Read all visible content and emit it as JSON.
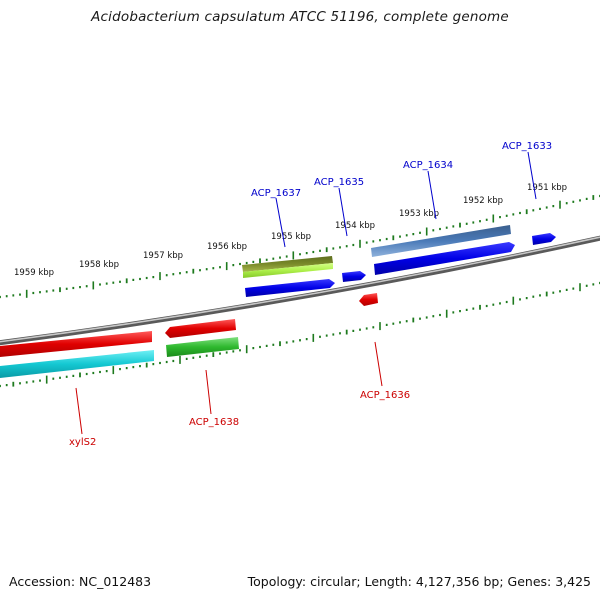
{
  "map": {
    "title": "Acidobacterium capsulatum ATCC 51196, complete genome",
    "accession": "Accession: NC_012483",
    "summary": "Topology: circular; Length: 4,127,356 bp; Genes: 3,425"
  },
  "ticks": [
    {
      "label": "1951 kbp"
    },
    {
      "label": "1952 kbp"
    },
    {
      "label": "1953 kbp"
    },
    {
      "label": "1954 kbp"
    },
    {
      "label": "1955 kbp"
    },
    {
      "label": "1956 kbp"
    },
    {
      "label": "1957 kbp"
    },
    {
      "label": "1958 kbp"
    },
    {
      "label": "1959 kbp"
    }
  ],
  "genes": {
    "acp1633": {
      "name": "ACP_1633",
      "strand": "forward",
      "color": "#0000cc"
    },
    "acp1634": {
      "name": "ACP_1634",
      "strand": "forward",
      "color": "#0000cc"
    },
    "acp1635": {
      "name": "ACP_1635",
      "strand": "forward",
      "color": "#0000cc"
    },
    "acp1636": {
      "name": "ACP_1636",
      "strand": "reverse",
      "color": "#cc0000"
    },
    "acp1637": {
      "name": "ACP_1637",
      "strand": "forward",
      "color": "#0000cc"
    },
    "acp1638": {
      "name": "ACP_1638",
      "strand": "reverse",
      "color": "#cc0000"
    },
    "xyls2": {
      "name": "xylS2",
      "strand": "reverse",
      "color": "#cc0000"
    }
  },
  "colors": {
    "backbone": "#8a8a8a",
    "tick": "#1e7a1e",
    "cds_forward": "#0000e6",
    "cds_reverse": "#e60000",
    "feature_steelblue": "#4a7ab8",
    "feature_olive": "#7a8a2a",
    "feature_lime": "#aef04a",
    "feature_green": "#2eb82e",
    "feature_cyan": "#14c8d2"
  }
}
